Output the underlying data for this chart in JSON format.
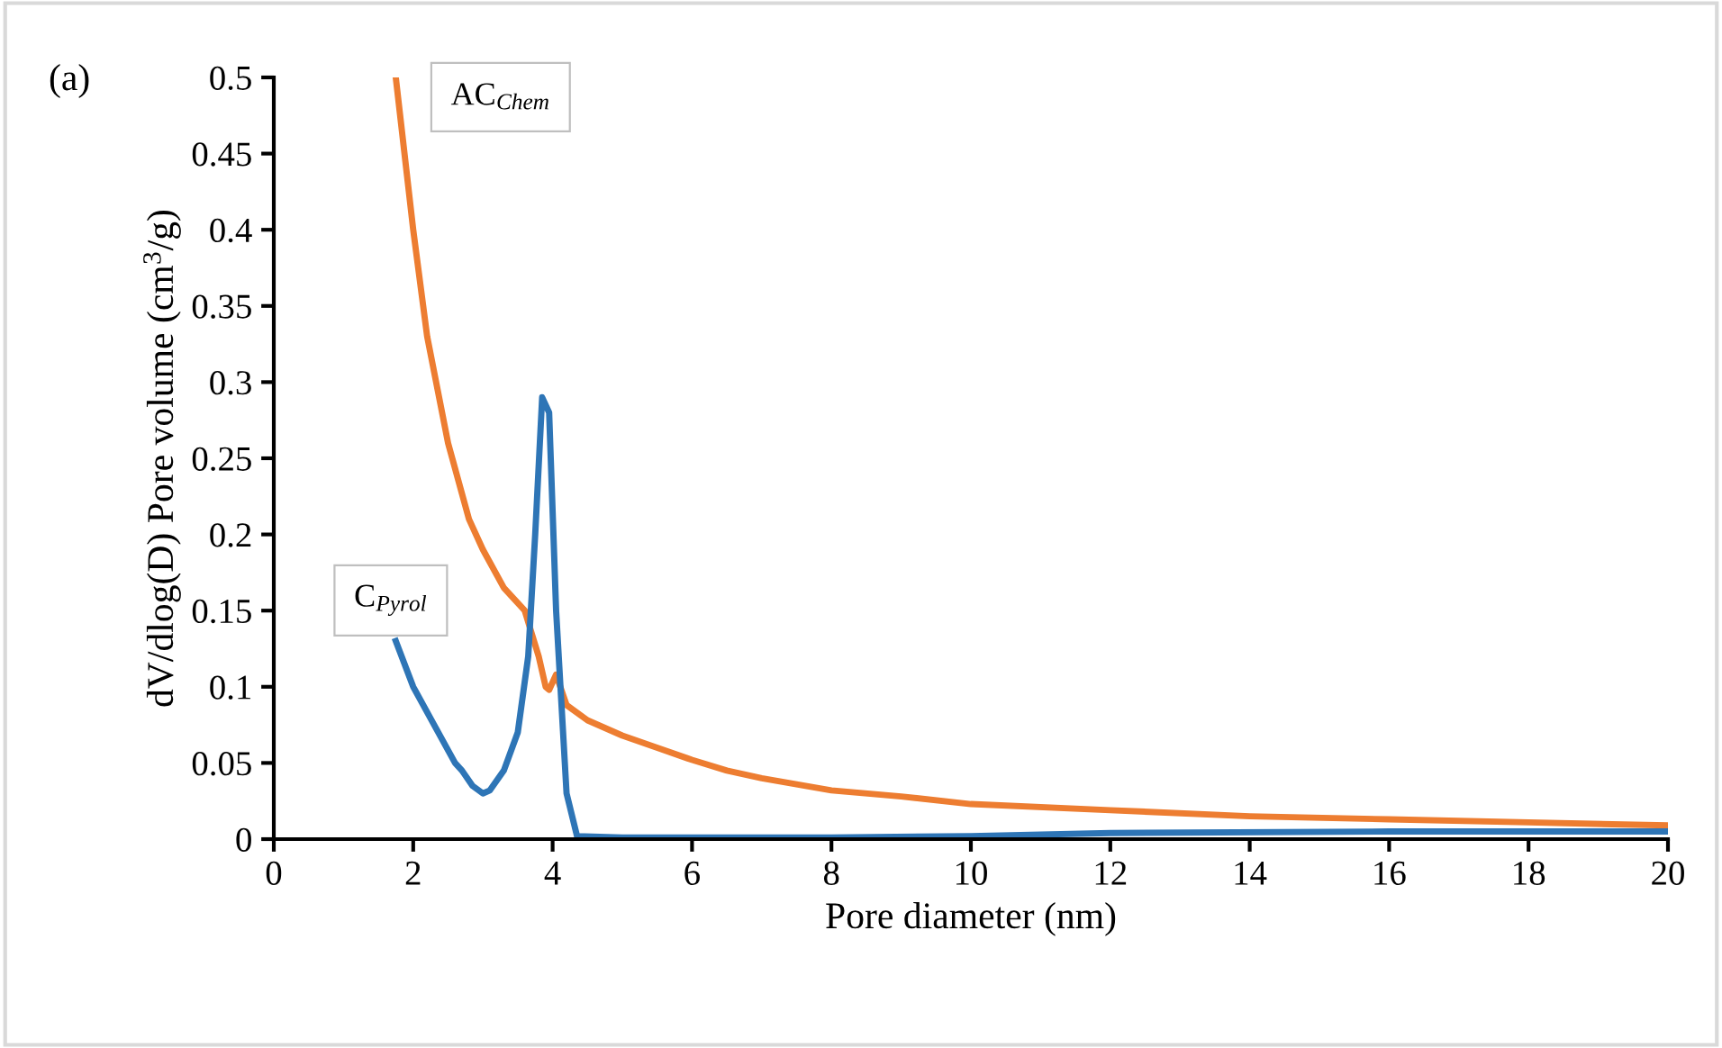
{
  "chart_data": {
    "type": "line",
    "xlabel": "Pore diameter (nm)",
    "ylabel": "dV/dlog(D) Pore volume (cm$^{3}$/g)",
    "annotations": [
      "(a)"
    ],
    "xlim": [
      0,
      20
    ],
    "xticks": [
      0,
      2,
      4,
      6,
      8,
      10,
      12,
      14,
      16,
      18,
      20
    ],
    "ylim": [
      0,
      0.5
    ],
    "yticks": [
      0,
      0.05,
      0.1,
      0.15,
      0.2,
      0.25,
      0.3,
      0.35,
      0.4,
      0.45,
      0.5
    ],
    "grid": false,
    "legend": false,
    "marker": "none",
    "line_style": "solid",
    "series": [
      {
        "name": "AC$_{Chem}$",
        "color": "#ed7d31",
        "x": [
          1.75,
          2.0,
          2.2,
          2.5,
          2.8,
          3.0,
          3.3,
          3.6,
          3.8,
          3.9,
          3.95,
          4.05,
          4.2,
          4.5,
          5.0,
          5.5,
          6.0,
          6.5,
          7.0,
          8.0,
          9.0,
          10.0,
          12.0,
          14.0,
          16.0,
          18.0,
          20.0
        ],
        "values": [
          0.5,
          0.4,
          0.33,
          0.26,
          0.21,
          0.19,
          0.165,
          0.15,
          0.12,
          0.1,
          0.098,
          0.108,
          0.088,
          0.078,
          0.068,
          0.06,
          0.052,
          0.045,
          0.04,
          0.032,
          0.028,
          0.023,
          0.019,
          0.015,
          0.013,
          0.011,
          0.009
        ]
      },
      {
        "name": "C$_{Pyrol}$",
        "color": "#2e75b6",
        "x": [
          1.75,
          2.0,
          2.3,
          2.6,
          2.7,
          2.85,
          3.0,
          3.1,
          3.3,
          3.5,
          3.65,
          3.75,
          3.85,
          3.95,
          4.05,
          4.2,
          4.35,
          5.0,
          8.0,
          10.0,
          12.0,
          16.0,
          20.0
        ],
        "values": [
          0.13,
          0.1,
          0.075,
          0.05,
          0.045,
          0.035,
          0.03,
          0.032,
          0.045,
          0.07,
          0.12,
          0.2,
          0.29,
          0.28,
          0.15,
          0.03,
          0.002,
          0.001,
          0.001,
          0.002,
          0.004,
          0.005,
          0.005
        ]
      }
    ]
  }
}
